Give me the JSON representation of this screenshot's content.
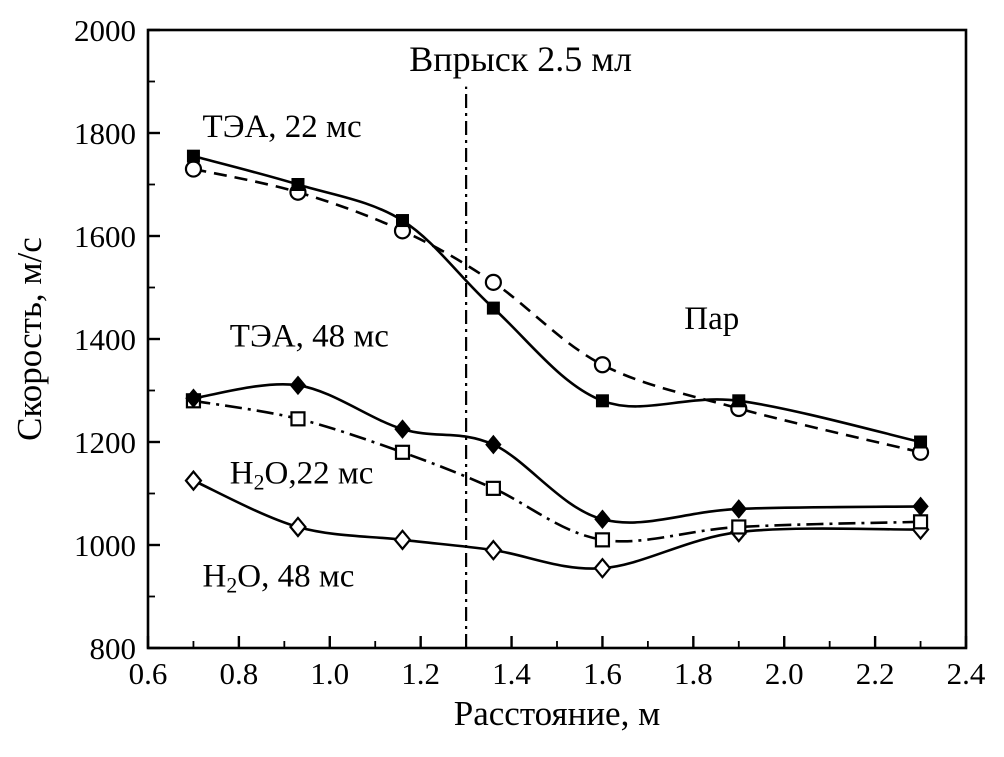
{
  "chart_data": {
    "type": "line",
    "title": "Впрыск 2.5 мл",
    "xlabel": "Расстояние, м",
    "ylabel": "Скорость, м/с",
    "xlim": [
      0.6,
      2.4
    ],
    "ylim": [
      800,
      2000
    ],
    "xticks": [
      0.6,
      0.8,
      1.0,
      1.2,
      1.4,
      1.6,
      1.8,
      2.0,
      2.2,
      2.4
    ],
    "xtick_labels": [
      "0.6",
      "0.8",
      "1.0",
      "1.2",
      "1.4",
      "1.6",
      "1.8",
      "2.0",
      "2.2",
      "2.4"
    ],
    "yticks": [
      800,
      1000,
      1200,
      1400,
      1600,
      1800,
      2000
    ],
    "ytick_labels": [
      "800",
      "1000",
      "1200",
      "1400",
      "1600",
      "1800",
      "2000"
    ],
    "grid": false,
    "legend": "in-plot text labels",
    "line_color": "#000000",
    "x": [
      0.7,
      0.93,
      1.16,
      1.36,
      1.6,
      1.9,
      2.3
    ],
    "series": [
      {
        "name": "ТЭА, 22 мс",
        "marker": "filled-square",
        "line": "solid",
        "values": [
          1755,
          1700,
          1630,
          1460,
          1280,
          1280,
          1200
        ]
      },
      {
        "name": "Пар",
        "marker": "open-circle",
        "line": "dashed",
        "values": [
          1730,
          1685,
          1610,
          1510,
          1350,
          1265,
          1180
        ]
      },
      {
        "name": "ТЭА, 48 мс",
        "marker": "filled-diamond",
        "line": "solid",
        "values": [
          1285,
          1310,
          1225,
          1195,
          1050,
          1070,
          1075
        ]
      },
      {
        "name": "H₂O, 22 мс",
        "marker": "open-square",
        "line": "dashdot",
        "values": [
          1280,
          1245,
          1180,
          1110,
          1010,
          1035,
          1045
        ]
      },
      {
        "name": "H₂O, 48 мс",
        "marker": "open-diamond",
        "line": "solid",
        "values": [
          1125,
          1035,
          1010,
          990,
          955,
          1025,
          1030
        ]
      }
    ],
    "vline": {
      "x": 1.3,
      "y_from": 800,
      "y_to": 1890,
      "style": "dashdot",
      "label": "Впрыск 2.5 мл"
    },
    "annotations": [
      {
        "text": "Впрыск 2.5 мл",
        "x": 1.42,
        "y": 1945,
        "anchor": "middle",
        "size": 36
      },
      {
        "text": "ТЭА, 22 мс",
        "x": 0.72,
        "y": 1815,
        "anchor": "start",
        "size": 33
      },
      {
        "text": "ТЭА, 48 мс",
        "x": 0.78,
        "y": 1408,
        "anchor": "start",
        "size": 33
      },
      {
        "text": "Пар",
        "x": 1.78,
        "y": 1442,
        "anchor": "start",
        "size": 33
      },
      {
        "text": "H₂O,22 мс",
        "x": 0.78,
        "y": 1142,
        "anchor": "start",
        "size": 33
      },
      {
        "text": "H₂O, 48 мс",
        "x": 0.72,
        "y": 942,
        "anchor": "start",
        "size": 33
      }
    ]
  }
}
